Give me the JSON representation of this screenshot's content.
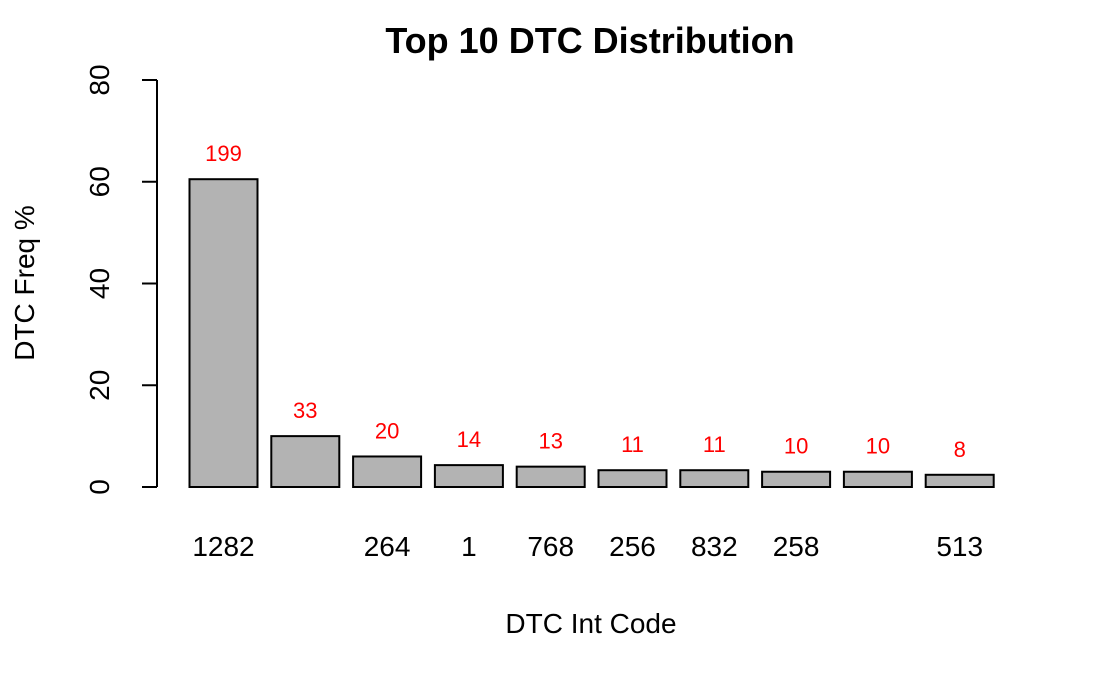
{
  "chart_data": {
    "type": "bar",
    "title": "Top 10 DTC Distribution",
    "xlabel": "DTC Int Code",
    "ylabel": "DTC Freq %",
    "categories": [
      "1282",
      "",
      "264",
      "1",
      "768",
      "256",
      "832",
      "258",
      "",
      "513"
    ],
    "values": [
      60.5,
      10.0,
      6.0,
      4.3,
      4.0,
      3.3,
      3.3,
      3.0,
      3.0,
      2.4
    ],
    "bar_labels": [
      "199",
      "33",
      "20",
      "14",
      "13",
      "11",
      "11",
      "10",
      "10",
      "8"
    ],
    "ylim": [
      0,
      80
    ],
    "yticks": [
      "0",
      "20",
      "40",
      "60",
      "80"
    ],
    "grid": false,
    "legend": "none",
    "colors": {
      "bar_fill": "#b3b3b3",
      "bar_stroke": "#000000",
      "label_color": "#ff0000"
    }
  }
}
